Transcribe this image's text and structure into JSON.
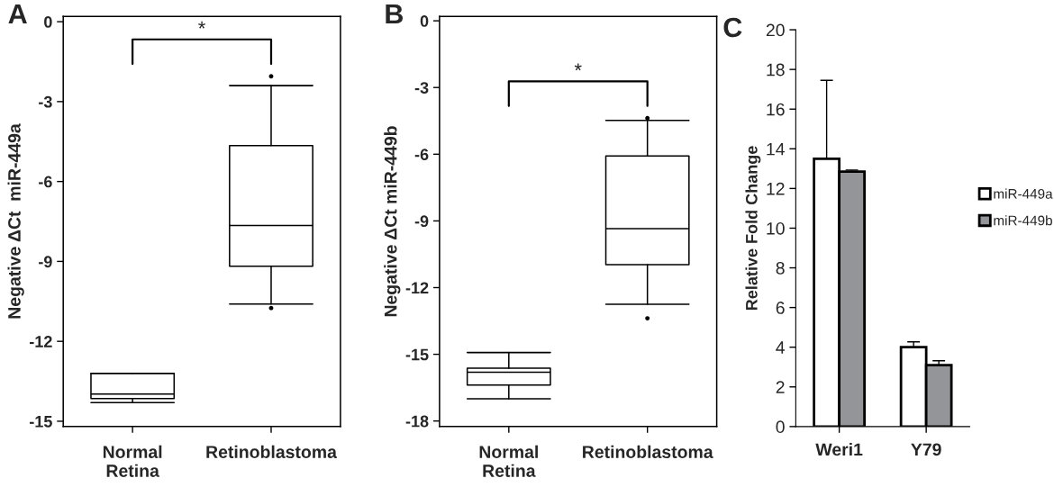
{
  "chart_data": [
    {
      "type": "box",
      "title": "A",
      "ylabel": "Negative ΔCt  miR-449a",
      "categories": [
        "Normal\nRetina",
        "Retinoblastoma"
      ],
      "ylim": [
        -15.2,
        0.2
      ],
      "yticks": [
        -15,
        -12,
        -9,
        -6,
        -3,
        0
      ],
      "grid": false,
      "annotations": [
        "*"
      ],
      "boxes": [
        {
          "low": -14.3,
          "q1": -14.15,
          "median": -13.98,
          "q3": -13.2,
          "high": -13.2
        },
        {
          "low": -10.6,
          "q1": -9.18,
          "median": -7.65,
          "q3": -4.65,
          "high": -2.4,
          "outliers": [
            -2.05,
            -10.75
          ]
        }
      ]
    },
    {
      "type": "box",
      "title": "B",
      "ylabel": "Negative ΔCt miR-449b",
      "categories": [
        "Normal\nRetina",
        "Retinoblastoma"
      ],
      "ylim": [
        -18.25,
        0.2
      ],
      "yticks": [
        -18,
        -15,
        -12,
        -9,
        -6,
        -3,
        0
      ],
      "grid": false,
      "annotations": [
        "*"
      ],
      "boxes": [
        {
          "low": -17.0,
          "q1": -16.38,
          "median": -15.81,
          "q3": -15.62,
          "high": -14.92
        },
        {
          "low": -12.75,
          "q1": -10.97,
          "median": -9.35,
          "q3": -6.08,
          "high": -4.48,
          "outliers": [
            -4.38,
            -13.38
          ]
        }
      ]
    },
    {
      "type": "bar",
      "title": "C",
      "ylabel": "Relative Fold Change",
      "categories": [
        "Weri1",
        "Y79"
      ],
      "ylim": [
        0,
        20
      ],
      "yticks": [
        0,
        2,
        4,
        6,
        8,
        10,
        12,
        14,
        16,
        18,
        20
      ],
      "grid": false,
      "legend": "right",
      "series": [
        {
          "name": "miR-449a",
          "color": "#ffffff",
          "values": [
            13.5,
            4.0
          ],
          "errors": [
            3.95,
            0.27
          ]
        },
        {
          "name": "miR-449b",
          "color": "#939598",
          "values": [
            12.85,
            3.1
          ],
          "errors": [
            0.08,
            0.22
          ]
        }
      ]
    }
  ]
}
